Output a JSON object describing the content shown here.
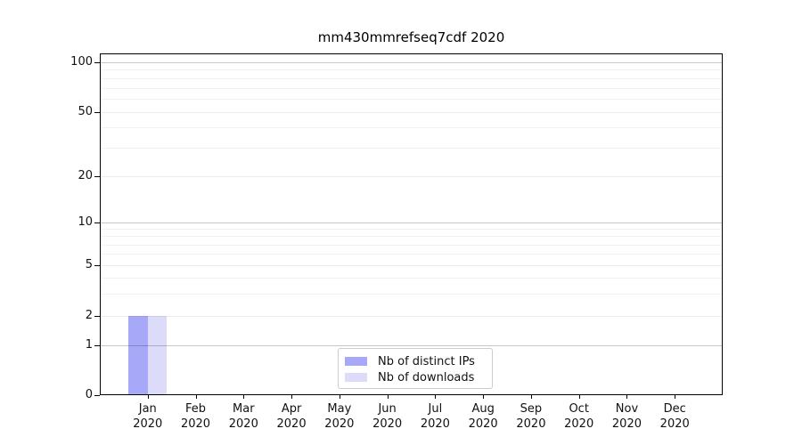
{
  "chart_data": {
    "type": "bar",
    "title": "mm430mmrefseq7cdf 2020",
    "categories": [
      {
        "month": "Jan",
        "year": "2020"
      },
      {
        "month": "Feb",
        "year": "2020"
      },
      {
        "month": "Mar",
        "year": "2020"
      },
      {
        "month": "Apr",
        "year": "2020"
      },
      {
        "month": "May",
        "year": "2020"
      },
      {
        "month": "Jun",
        "year": "2020"
      },
      {
        "month": "Jul",
        "year": "2020"
      },
      {
        "month": "Aug",
        "year": "2020"
      },
      {
        "month": "Sep",
        "year": "2020"
      },
      {
        "month": "Oct",
        "year": "2020"
      },
      {
        "month": "Nov",
        "year": "2020"
      },
      {
        "month": "Dec",
        "year": "2020"
      }
    ],
    "series": [
      {
        "name": "Nb of distinct IPs",
        "color": "#a8a8f8",
        "values": [
          2,
          0,
          0,
          0,
          0,
          0,
          0,
          0,
          0,
          0,
          0,
          0
        ]
      },
      {
        "name": "Nb of downloads",
        "color": "#dcdcfa",
        "values": [
          2,
          0,
          0,
          0,
          0,
          0,
          0,
          0,
          0,
          0,
          0,
          0
        ]
      }
    ],
    "y_axis": {
      "scale": "symlog",
      "major_ticks": [
        0,
        1,
        2,
        5,
        10,
        20,
        50,
        100
      ],
      "decade_ticks": [
        1,
        10,
        100
      ],
      "minor_ticks": [
        3,
        4,
        6,
        7,
        8,
        9,
        30,
        40,
        60,
        70,
        80,
        90
      ],
      "tick_fractions": {
        "0": 0,
        "1": 0.1471,
        "2": 0.2305,
        "5": 0.3802,
        "10": 0.5052,
        "20": 0.6406,
        "50": 0.8294,
        "100": 0.974
      }
    },
    "legend": {
      "position": "lower center",
      "entries": [
        "Nb of distinct IPs",
        "Nb of downloads"
      ]
    },
    "grid": true
  }
}
